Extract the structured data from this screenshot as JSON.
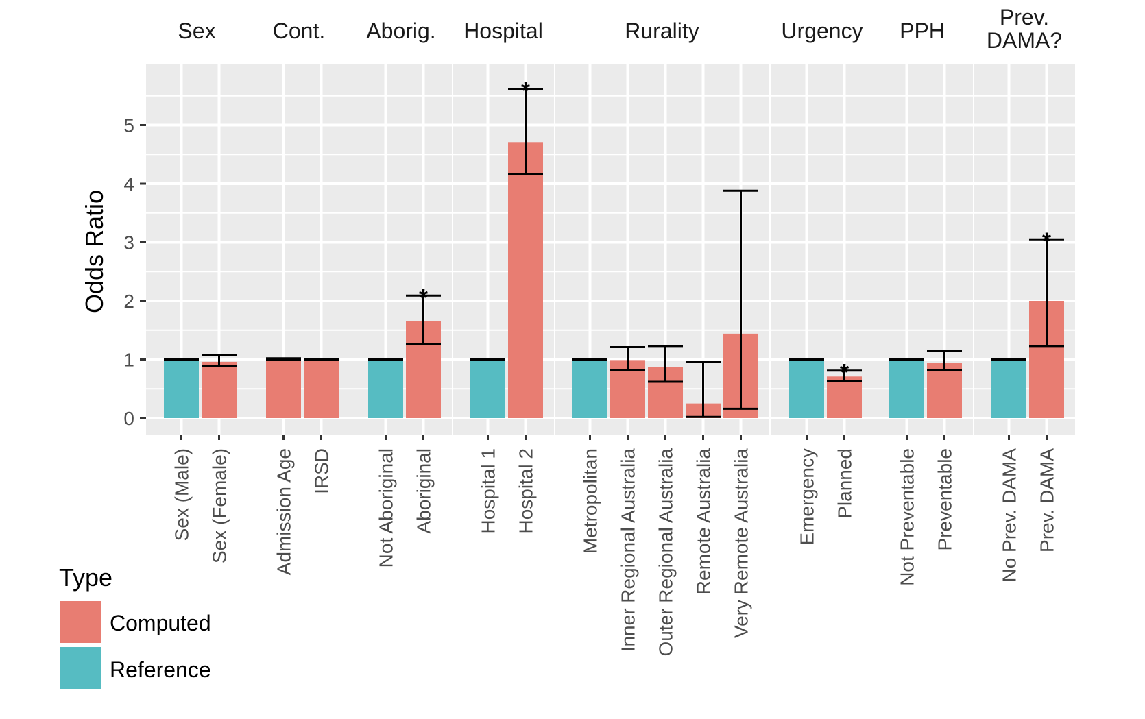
{
  "chart_data": {
    "type": "bar",
    "title": "",
    "xlabel": "",
    "ylabel": "Odds Ratio",
    "ylim": [
      -0.25,
      6.0
    ],
    "yticks": [
      0,
      1,
      2,
      3,
      4,
      5
    ],
    "grid": true,
    "legend": {
      "title": "Type",
      "placement": "bottom-left",
      "entries": [
        {
          "name": "Computed",
          "color": "#E87D72"
        },
        {
          "name": "Reference",
          "color": "#56BCC2"
        }
      ]
    },
    "facets": [
      {
        "title": "Sex",
        "bars": [
          {
            "label": "Sex (Male)",
            "value": 1.0,
            "type": "Reference"
          },
          {
            "label": "Sex (Female)",
            "value": 0.96,
            "type": "Computed",
            "ci_low": 0.89,
            "ci_high": 1.07
          }
        ]
      },
      {
        "title": "Cont.",
        "bars": [
          {
            "label": "Admission Age",
            "value": 1.01,
            "type": "Computed",
            "ci_low": 1.0,
            "ci_high": 1.02
          },
          {
            "label": "IRSD",
            "value": 1.0,
            "type": "Computed",
            "ci_low": 0.99,
            "ci_high": 1.01
          }
        ]
      },
      {
        "title": "Aborig.",
        "bars": [
          {
            "label": "Not Aboriginal",
            "value": 1.0,
            "type": "Reference"
          },
          {
            "label": "Aboriginal",
            "value": 1.65,
            "type": "Computed",
            "ci_low": 1.26,
            "ci_high": 2.09,
            "significant": true
          }
        ]
      },
      {
        "title": "Hospital",
        "bars": [
          {
            "label": "Hospital 1",
            "value": 1.0,
            "type": "Reference"
          },
          {
            "label": "Hospital 2",
            "value": 4.71,
            "type": "Computed",
            "ci_low": 4.16,
            "ci_high": 5.62,
            "significant": true
          }
        ]
      },
      {
        "title": "Rurality",
        "bars": [
          {
            "label": "Metropolitan",
            "value": 1.0,
            "type": "Reference"
          },
          {
            "label": "Inner Regional Australia",
            "value": 0.99,
            "type": "Computed",
            "ci_low": 0.82,
            "ci_high": 1.21
          },
          {
            "label": "Outer Regional Australia",
            "value": 0.87,
            "type": "Computed",
            "ci_low": 0.62,
            "ci_high": 1.23
          },
          {
            "label": "Remote Australia",
            "value": 0.25,
            "type": "Computed",
            "ci_low": 0.02,
            "ci_high": 0.96
          },
          {
            "label": "Very Remote Australia",
            "value": 1.44,
            "type": "Computed",
            "ci_low": 0.16,
            "ci_high": 3.88
          }
        ]
      },
      {
        "title": "Urgency",
        "bars": [
          {
            "label": "Emergency",
            "value": 1.0,
            "type": "Reference"
          },
          {
            "label": "Planned",
            "value": 0.71,
            "type": "Computed",
            "ci_low": 0.63,
            "ci_high": 0.81,
            "significant": true
          }
        ]
      },
      {
        "title": "PPH",
        "bars": [
          {
            "label": "Not Preventable",
            "value": 1.0,
            "type": "Reference"
          },
          {
            "label": "Preventable",
            "value": 0.94,
            "type": "Computed",
            "ci_low": 0.82,
            "ci_high": 1.14
          }
        ]
      },
      {
        "title": "Prev.\nDAMA?",
        "bars": [
          {
            "label": "No Prev. DAMA",
            "value": 1.0,
            "type": "Reference"
          },
          {
            "label": "Prev. DAMA",
            "value": 2.0,
            "type": "Computed",
            "ci_low": 1.23,
            "ci_high": 3.05,
            "significant": true
          }
        ]
      }
    ],
    "significance_marker": "*"
  }
}
